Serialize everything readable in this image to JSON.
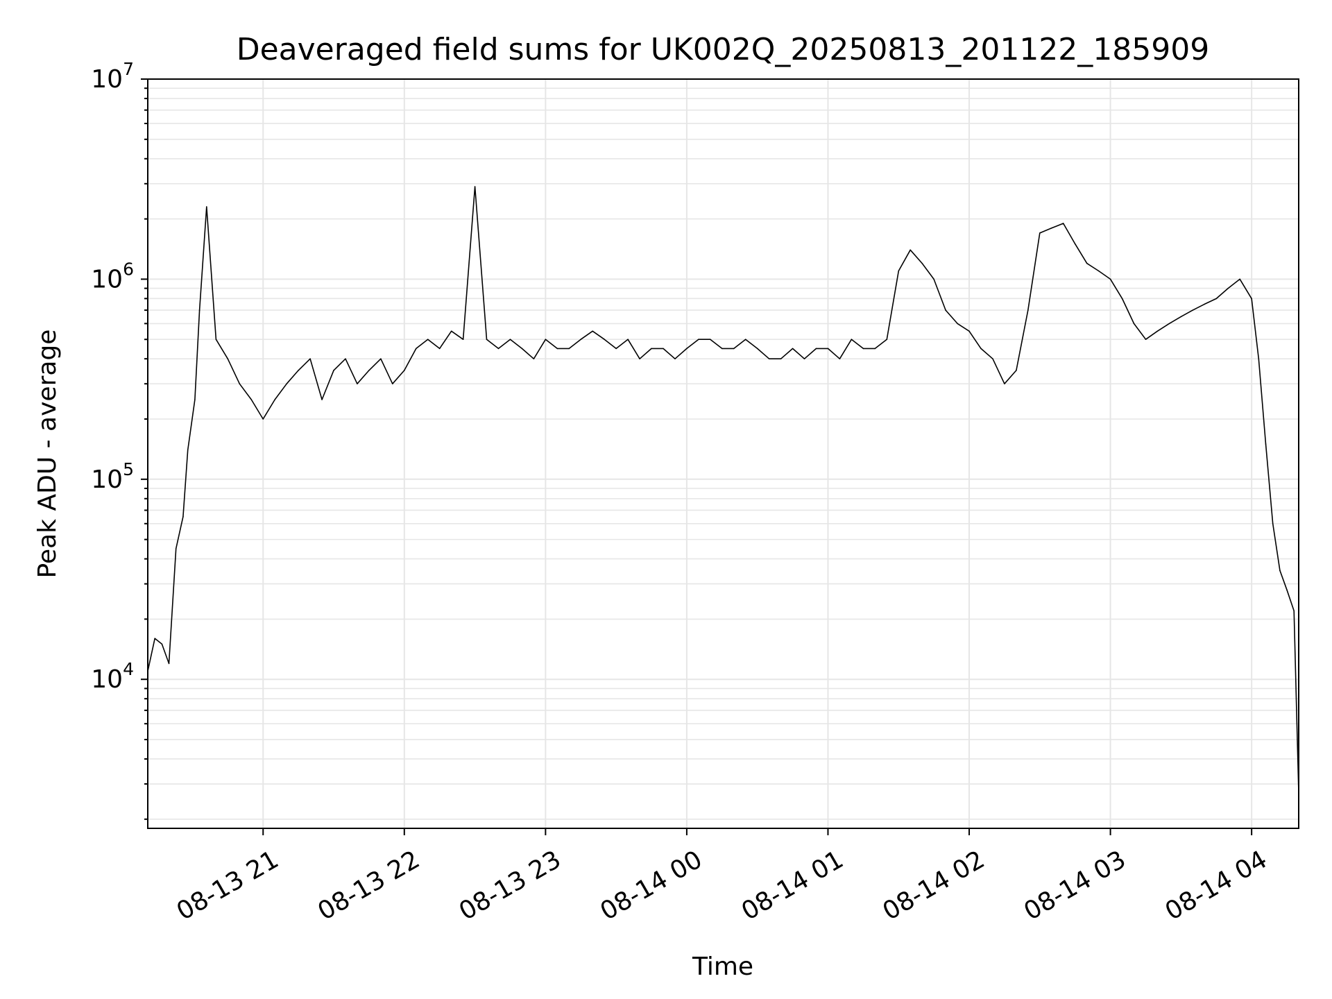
{
  "chart_data": {
    "type": "line",
    "title": "Deaveraged field sums for UK002Q_20250813_201122_185909",
    "xlabel": "Time",
    "ylabel": "Peak ADU - average",
    "y_scale": "log",
    "ylim": [
      1800,
      10000000
    ],
    "xlim": [
      "2025-08-13 20:11",
      "2025-08-14 04:20"
    ],
    "grid": true,
    "grid_color": "#e6e6e6",
    "line_color": "#000000",
    "x_ticks": [
      {
        "label": "08-13 21",
        "value": "2025-08-13 21:00"
      },
      {
        "label": "08-13 22",
        "value": "2025-08-13 22:00"
      },
      {
        "label": "08-13 23",
        "value": "2025-08-13 23:00"
      },
      {
        "label": "08-14 00",
        "value": "2025-08-14 00:00"
      },
      {
        "label": "08-14 01",
        "value": "2025-08-14 01:00"
      },
      {
        "label": "08-14 02",
        "value": "2025-08-14 02:00"
      },
      {
        "label": "08-14 03",
        "value": "2025-08-14 03:00"
      },
      {
        "label": "08-14 04",
        "value": "2025-08-14 04:00"
      }
    ],
    "y_ticks": [
      {
        "base": "10",
        "exp": "4",
        "value": 10000
      },
      {
        "base": "10",
        "exp": "5",
        "value": 100000
      },
      {
        "base": "10",
        "exp": "6",
        "value": 1000000
      },
      {
        "base": "10",
        "exp": "7",
        "value": 10000000
      }
    ],
    "series": [
      {
        "x": [
          "2025-08-13 20:11",
          "2025-08-13 20:14",
          "2025-08-13 20:17",
          "2025-08-13 20:20",
          "2025-08-13 20:23",
          "2025-08-13 20:26",
          "2025-08-13 20:28",
          "2025-08-13 20:31",
          "2025-08-13 20:33",
          "2025-08-13 20:36",
          "2025-08-13 20:40",
          "2025-08-13 20:45",
          "2025-08-13 20:50",
          "2025-08-13 20:55",
          "2025-08-13 21:00",
          "2025-08-13 21:05",
          "2025-08-13 21:10",
          "2025-08-13 21:15",
          "2025-08-13 21:20",
          "2025-08-13 21:25",
          "2025-08-13 21:30",
          "2025-08-13 21:35",
          "2025-08-13 21:40",
          "2025-08-13 21:45",
          "2025-08-13 21:50",
          "2025-08-13 21:55",
          "2025-08-13 22:00",
          "2025-08-13 22:05",
          "2025-08-13 22:10",
          "2025-08-13 22:15",
          "2025-08-13 22:20",
          "2025-08-13 22:25",
          "2025-08-13 22:30",
          "2025-08-13 22:35",
          "2025-08-13 22:40",
          "2025-08-13 22:45",
          "2025-08-13 22:50",
          "2025-08-13 22:55",
          "2025-08-13 23:00",
          "2025-08-13 23:05",
          "2025-08-13 23:10",
          "2025-08-13 23:15",
          "2025-08-13 23:20",
          "2025-08-13 23:25",
          "2025-08-13 23:30",
          "2025-08-13 23:35",
          "2025-08-13 23:40",
          "2025-08-13 23:45",
          "2025-08-13 23:50",
          "2025-08-13 23:55",
          "2025-08-14 00:00",
          "2025-08-14 00:05",
          "2025-08-14 00:10",
          "2025-08-14 00:15",
          "2025-08-14 00:20",
          "2025-08-14 00:25",
          "2025-08-14 00:30",
          "2025-08-14 00:35",
          "2025-08-14 00:40",
          "2025-08-14 00:45",
          "2025-08-14 00:50",
          "2025-08-14 00:55",
          "2025-08-14 01:00",
          "2025-08-14 01:05",
          "2025-08-14 01:10",
          "2025-08-14 01:15",
          "2025-08-14 01:20",
          "2025-08-14 01:25",
          "2025-08-14 01:30",
          "2025-08-14 01:35",
          "2025-08-14 01:40",
          "2025-08-14 01:45",
          "2025-08-14 01:50",
          "2025-08-14 01:55",
          "2025-08-14 02:00",
          "2025-08-14 02:05",
          "2025-08-14 02:10",
          "2025-08-14 02:15",
          "2025-08-14 02:20",
          "2025-08-14 02:25",
          "2025-08-14 02:30",
          "2025-08-14 02:35",
          "2025-08-14 02:40",
          "2025-08-14 02:45",
          "2025-08-14 02:50",
          "2025-08-14 02:55",
          "2025-08-14 03:00",
          "2025-08-14 03:05",
          "2025-08-14 03:10",
          "2025-08-14 03:15",
          "2025-08-14 03:20",
          "2025-08-14 03:25",
          "2025-08-14 03:30",
          "2025-08-14 03:35",
          "2025-08-14 03:40",
          "2025-08-14 03:45",
          "2025-08-14 03:50",
          "2025-08-14 03:55",
          "2025-08-14 04:00",
          "2025-08-14 04:03",
          "2025-08-14 04:06",
          "2025-08-14 04:09",
          "2025-08-14 04:12",
          "2025-08-14 04:15",
          "2025-08-14 04:18",
          "2025-08-14 04:20"
        ],
        "y": [
          11000,
          16000,
          15000,
          12000,
          45000,
          65000,
          140000,
          250000,
          700000,
          2300000,
          500000,
          400000,
          300000,
          250000,
          200000,
          250000,
          300000,
          350000,
          400000,
          250000,
          350000,
          400000,
          300000,
          350000,
          400000,
          300000,
          350000,
          450000,
          500000,
          450000,
          550000,
          500000,
          2900000,
          500000,
          450000,
          500000,
          450000,
          400000,
          500000,
          450000,
          450000,
          500000,
          550000,
          500000,
          450000,
          500000,
          400000,
          450000,
          450000,
          400000,
          450000,
          500000,
          500000,
          450000,
          450000,
          500000,
          450000,
          400000,
          400000,
          450000,
          400000,
          450000,
          450000,
          400000,
          500000,
          450000,
          450000,
          500000,
          1100000,
          1400000,
          1200000,
          1000000,
          700000,
          600000,
          550000,
          450000,
          400000,
          300000,
          350000,
          700000,
          1700000,
          1800000,
          1900000,
          1500000,
          1200000,
          1100000,
          1000000,
          800000,
          600000,
          500000,
          550000,
          600000,
          650000,
          700000,
          750000,
          800000,
          900000,
          1000000,
          800000,
          400000,
          150000,
          60000,
          35000,
          28000,
          22000,
          2700
        ]
      }
    ]
  }
}
